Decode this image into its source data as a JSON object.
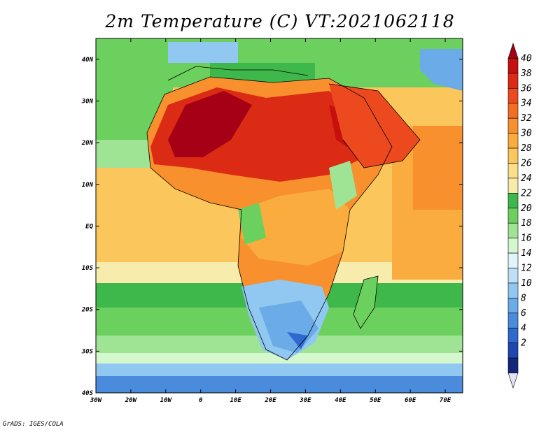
{
  "title": "2m Temperature (C) VT:2021062118",
  "credit": "GrADS: IGES/COLA",
  "map": {
    "variable": "2m Temperature",
    "units": "C",
    "lon_range": [
      -30,
      75
    ],
    "lat_range": [
      -40,
      45
    ],
    "lon_ticks": [
      "30W",
      "20W",
      "10W",
      "0",
      "10E",
      "20E",
      "30E",
      "40E",
      "50E",
      "60E",
      "70E"
    ],
    "lat_ticks": [
      "40N",
      "30N",
      "20N",
      "10N",
      "EQ",
      "10S",
      "20S",
      "30S",
      "40S"
    ]
  },
  "colorbar": {
    "labels": [
      "40",
      "38",
      "36",
      "34",
      "32",
      "30",
      "28",
      "26",
      "24",
      "22",
      "20",
      "18",
      "16",
      "14",
      "12",
      "10",
      "8",
      "6",
      "4",
      "2"
    ],
    "colors": [
      "#a50015",
      "#c5100d",
      "#dc2b14",
      "#ec4a1e",
      "#f46d25",
      "#f8902d",
      "#faad3e",
      "#fbc65b",
      "#fce089",
      "#f7ecab",
      "#3fb84b",
      "#6cd05f",
      "#9fe394",
      "#d5f7ce",
      "#dff5fb",
      "#bde0f6",
      "#90c8f1",
      "#6aabe8",
      "#4a8bdb",
      "#2f69cd",
      "#1e47b2",
      "#13267c",
      "#e6e0f8"
    ]
  }
}
